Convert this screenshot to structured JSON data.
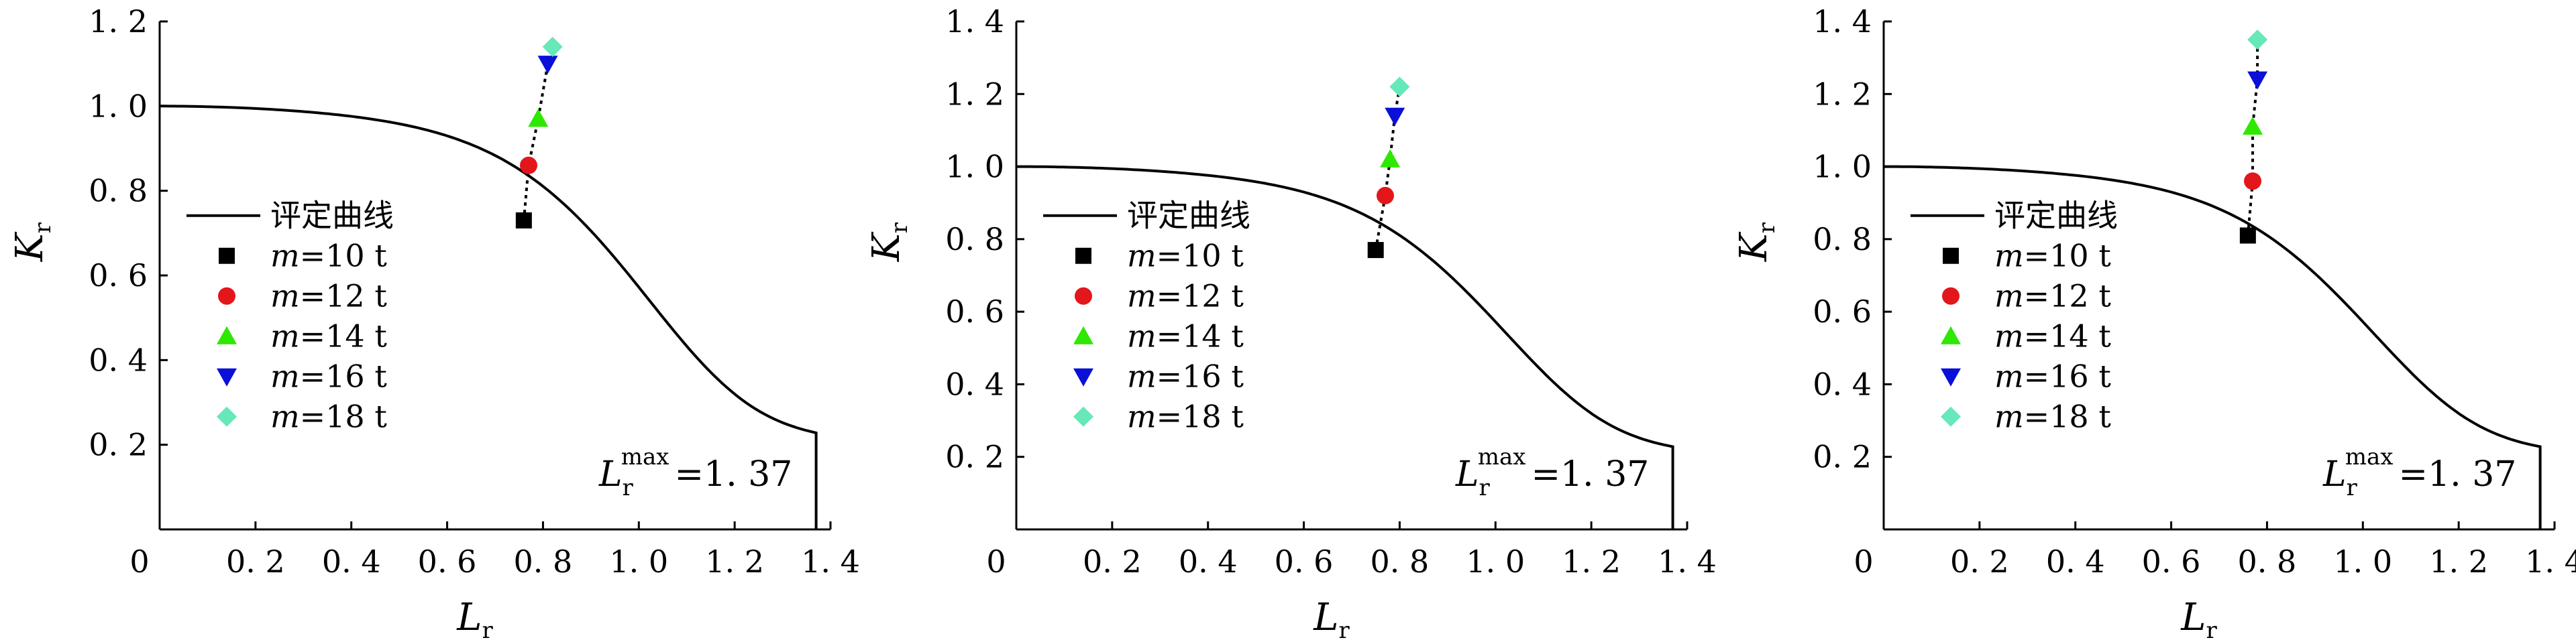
{
  "chart_data": [
    {
      "type": "line",
      "title": "",
      "xlabel": {
        "main": "L",
        "sub": "r"
      },
      "ylabel": {
        "main": "K",
        "sub": "r"
      },
      "xlim": [
        0,
        1.4
      ],
      "ylim": [
        0,
        1.2
      ],
      "xticks": [
        "0",
        "0. 2",
        "0. 4",
        "0. 6",
        "0. 8",
        "1. 0",
        "1. 2",
        "1. 4"
      ],
      "yticks": [
        "0. 2",
        "0. 4",
        "0. 6",
        "0. 8",
        "1. 0",
        "1. 2"
      ],
      "ytick_values": [
        0.2,
        0.4,
        0.6,
        0.8,
        1.0,
        1.2
      ],
      "curve": {
        "name": "评定曲线",
        "color": "#000000",
        "cutoff": 1.37
      },
      "legend": [
        {
          "label": "评定曲线",
          "kind": "line"
        },
        {
          "label": "m = 10 t",
          "var": "m",
          "text": "=10 t",
          "marker": "square",
          "color": "#000000"
        },
        {
          "label": "m = 12 t",
          "var": "m",
          "text": "=12 t",
          "marker": "circle",
          "color": "#e3161b"
        },
        {
          "label": "m = 14 t",
          "var": "m",
          "text": "=14 t",
          "marker": "triangle-up",
          "color": "#2ee800"
        },
        {
          "label": "m = 16 t",
          "var": "m",
          "text": "=16 t",
          "marker": "triangle-down",
          "color": "#0a10d8"
        },
        {
          "label": "m = 18 t",
          "var": "m",
          "text": "=18 t",
          "marker": "diamond",
          "color": "#66e8b8"
        }
      ],
      "points": [
        {
          "m": 10,
          "x": 0.76,
          "y": 0.73
        },
        {
          "m": 12,
          "x": 0.77,
          "y": 0.86
        },
        {
          "m": 14,
          "x": 0.79,
          "y": 0.97
        },
        {
          "m": 16,
          "x": 0.81,
          "y": 1.1
        },
        {
          "m": 18,
          "x": 0.82,
          "y": 1.14
        }
      ],
      "annotation": {
        "main": "L",
        "sub": "r",
        "sup": "max",
        "value": "=1. 37"
      }
    },
    {
      "type": "line",
      "title": "",
      "xlabel": {
        "main": "L",
        "sub": "r"
      },
      "ylabel": {
        "main": "K",
        "sub": "r"
      },
      "xlim": [
        0,
        1.4
      ],
      "ylim": [
        0,
        1.4
      ],
      "xticks": [
        "0",
        "0. 2",
        "0. 4",
        "0. 6",
        "0. 8",
        "1. 0",
        "1. 2",
        "1. 4"
      ],
      "yticks": [
        "0. 2",
        "0. 4",
        "0. 6",
        "0. 8",
        "1. 0",
        "1. 2",
        "1. 4"
      ],
      "ytick_values": [
        0.2,
        0.4,
        0.6,
        0.8,
        1.0,
        1.2,
        1.4
      ],
      "curve": {
        "name": "评定曲线",
        "color": "#000000",
        "cutoff": 1.37
      },
      "legend": [
        {
          "label": "评定曲线",
          "kind": "line"
        },
        {
          "label": "m = 10 t",
          "var": "m",
          "text": "=10 t",
          "marker": "square",
          "color": "#000000"
        },
        {
          "label": "m = 12 t",
          "var": "m",
          "text": "=12 t",
          "marker": "circle",
          "color": "#e3161b"
        },
        {
          "label": "m = 14 t",
          "var": "m",
          "text": "=14 t",
          "marker": "triangle-up",
          "color": "#2ee800"
        },
        {
          "label": "m = 16 t",
          "var": "m",
          "text": "=16 t",
          "marker": "triangle-down",
          "color": "#0a10d8"
        },
        {
          "label": "m = 18 t",
          "var": "m",
          "text": "=18 t",
          "marker": "diamond",
          "color": "#66e8b8"
        }
      ],
      "points": [
        {
          "m": 10,
          "x": 0.75,
          "y": 0.77
        },
        {
          "m": 12,
          "x": 0.77,
          "y": 0.92
        },
        {
          "m": 14,
          "x": 0.78,
          "y": 1.02
        },
        {
          "m": 16,
          "x": 0.79,
          "y": 1.14
        },
        {
          "m": 18,
          "x": 0.8,
          "y": 1.22
        }
      ],
      "annotation": {
        "main": "L",
        "sub": "r",
        "sup": "max",
        "value": "=1. 37"
      }
    },
    {
      "type": "line",
      "title": "",
      "xlabel": {
        "main": "L",
        "sub": "r"
      },
      "ylabel": {
        "main": "K",
        "sub": "r"
      },
      "xlim": [
        0,
        1.4
      ],
      "ylim": [
        0,
        1.4
      ],
      "xticks": [
        "0",
        "0. 2",
        "0. 4",
        "0. 6",
        "0. 8",
        "1. 0",
        "1. 2",
        "1. 4"
      ],
      "yticks": [
        "0. 2",
        "0. 4",
        "0. 6",
        "0. 8",
        "1. 0",
        "1. 2",
        "1. 4"
      ],
      "ytick_values": [
        0.2,
        0.4,
        0.6,
        0.8,
        1.0,
        1.2,
        1.4
      ],
      "curve": {
        "name": "评定曲线",
        "color": "#000000",
        "cutoff": 1.37
      },
      "legend": [
        {
          "label": "评定曲线",
          "kind": "line"
        },
        {
          "label": "m = 10 t",
          "var": "m",
          "text": "=10 t",
          "marker": "square",
          "color": "#000000"
        },
        {
          "label": "m = 12 t",
          "var": "m",
          "text": "=12 t",
          "marker": "circle",
          "color": "#e3161b"
        },
        {
          "label": "m = 14 t",
          "var": "m",
          "text": "=14 t",
          "marker": "triangle-up",
          "color": "#2ee800"
        },
        {
          "label": "m = 16 t",
          "var": "m",
          "text": "=16 t",
          "marker": "triangle-down",
          "color": "#0a10d8"
        },
        {
          "label": "m = 18 t",
          "var": "m",
          "text": "=18 t",
          "marker": "diamond",
          "color": "#66e8b8"
        }
      ],
      "points": [
        {
          "m": 10,
          "x": 0.76,
          "y": 0.81
        },
        {
          "m": 12,
          "x": 0.77,
          "y": 0.96
        },
        {
          "m": 14,
          "x": 0.77,
          "y": 1.11
        },
        {
          "m": 16,
          "x": 0.78,
          "y": 1.24
        },
        {
          "m": 18,
          "x": 0.78,
          "y": 1.35
        }
      ],
      "annotation": {
        "main": "L",
        "sub": "r",
        "sup": "max",
        "value": "=1. 37"
      }
    }
  ]
}
